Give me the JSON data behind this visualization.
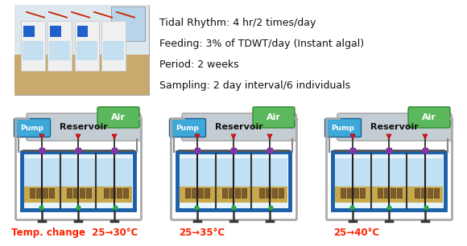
{
  "background_color": "#ffffff",
  "info_text": [
    "Tidal Rhythm: 4 hr/2 times/day",
    "Feeding: 3% of TDWT/day (Instant algal)",
    "Period: 2 weeks",
    "Sampling: 2 day interval/6 individuals"
  ],
  "info_fontsize": 9.0,
  "temp_labels": [
    "Temp. change  25→30°C",
    "25→35°C",
    "25→40°C"
  ],
  "temp_label_color": "#ff2200",
  "temp_label_fontsize": 8.5,
  "air_color": "#5cb85c",
  "reservoir_color": "#c5cdd4",
  "pump_color": "#3ea8d8",
  "tank_border_color": "#1a5fa8",
  "tank_water_color": "#aad4f0",
  "tank_bg_color": "#c8a84b",
  "pipe_color": "#888888",
  "red_dot_color": "#ee1111",
  "purple_color": "#8833aa",
  "black_color": "#222222"
}
